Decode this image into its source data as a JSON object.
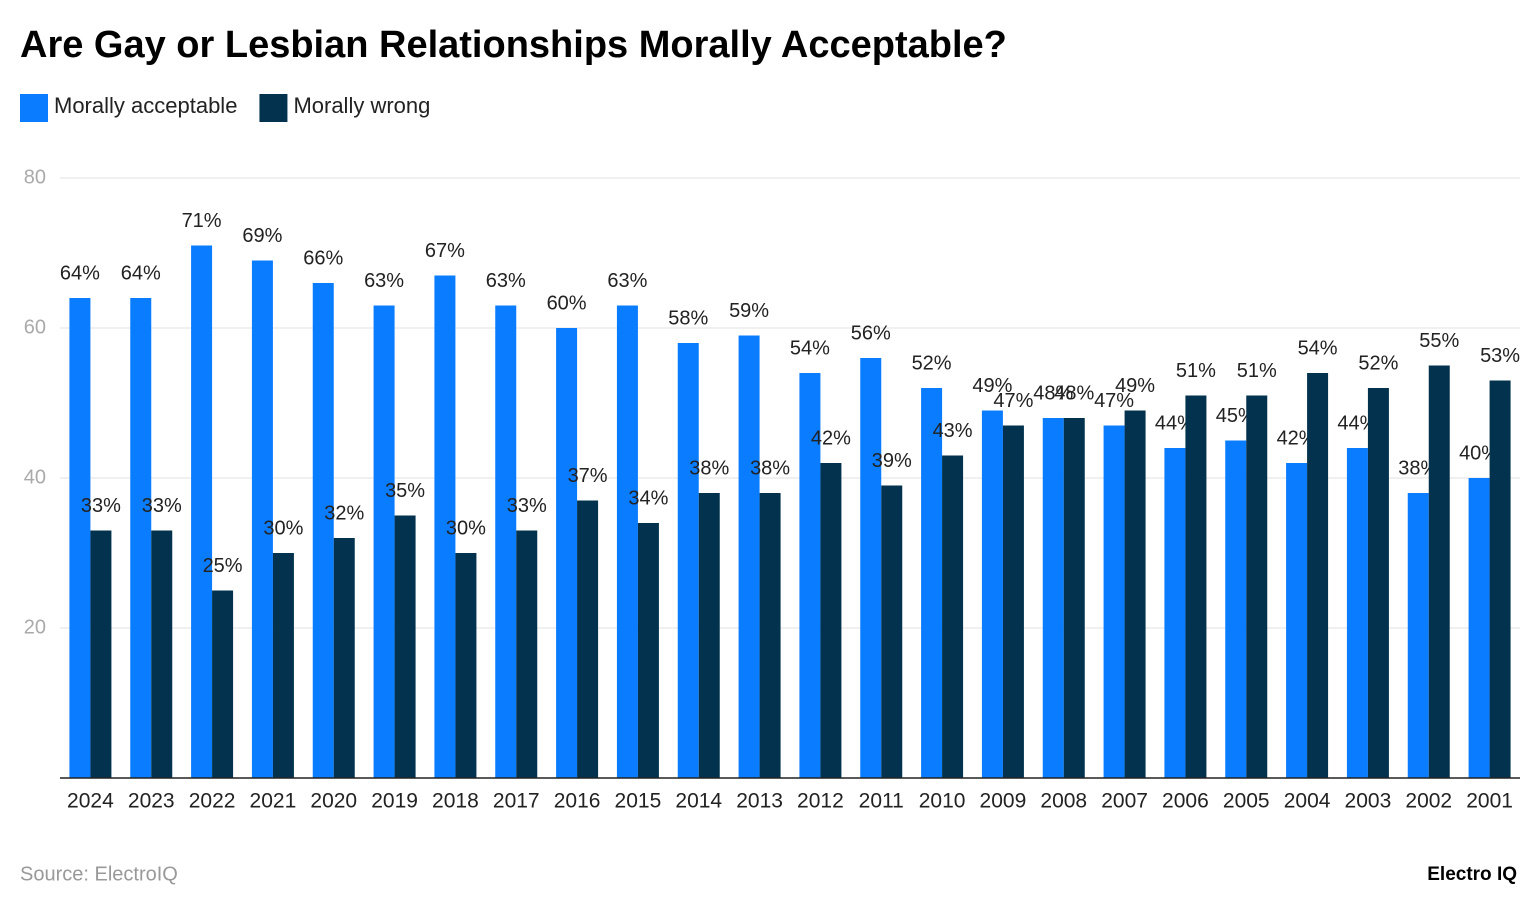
{
  "chart_data": {
    "type": "bar",
    "title": "Are Gay or Lesbian Relationships Morally Acceptable?",
    "categories": [
      "2024",
      "2023",
      "2022",
      "2021",
      "2020",
      "2019",
      "2018",
      "2017",
      "2016",
      "2015",
      "2014",
      "2013",
      "2012",
      "2011",
      "2010",
      "2009",
      "2008",
      "2007",
      "2006",
      "2005",
      "2004",
      "2003",
      "2002",
      "2001"
    ],
    "series": [
      {
        "name": "Morally acceptable",
        "color": "#0a7cff",
        "values": [
          64,
          64,
          71,
          69,
          66,
          63,
          67,
          63,
          60,
          63,
          58,
          59,
          54,
          56,
          52,
          49,
          48,
          47,
          44,
          45,
          42,
          44,
          38,
          40
        ],
        "value_labels": [
          "64%",
          "64%",
          "71%",
          "69%",
          "66%",
          "63%",
          "67%",
          "63%",
          "60%",
          "63%",
          "58%",
          "59%",
          "54%",
          "56%",
          "52%",
          "49%",
          "48%",
          "47%",
          "44%",
          "45%",
          "42%",
          "44%",
          "38%",
          "40%"
        ]
      },
      {
        "name": "Morally wrong",
        "color": "#02324e",
        "values": [
          33,
          33,
          25,
          30,
          32,
          35,
          30,
          33,
          37,
          34,
          38,
          38,
          42,
          39,
          43,
          47,
          48,
          49,
          51,
          51,
          54,
          52,
          55,
          53
        ],
        "value_labels": [
          "33%",
          "33%",
          "25%",
          "30%",
          "32%",
          "35%",
          "30%",
          "33%",
          "37%",
          "34%",
          "38%",
          "38%",
          "42%",
          "39%",
          "43%",
          "47%",
          "48%",
          "49%",
          "51%",
          "51%",
          "54%",
          "52%",
          "55%",
          "53%"
        ]
      }
    ],
    "ylim": [
      0,
      80
    ],
    "yticks": [
      20,
      40,
      60,
      80
    ],
    "grid": true,
    "source": "Source: ElectroIQ",
    "brand": "Electro IQ"
  }
}
